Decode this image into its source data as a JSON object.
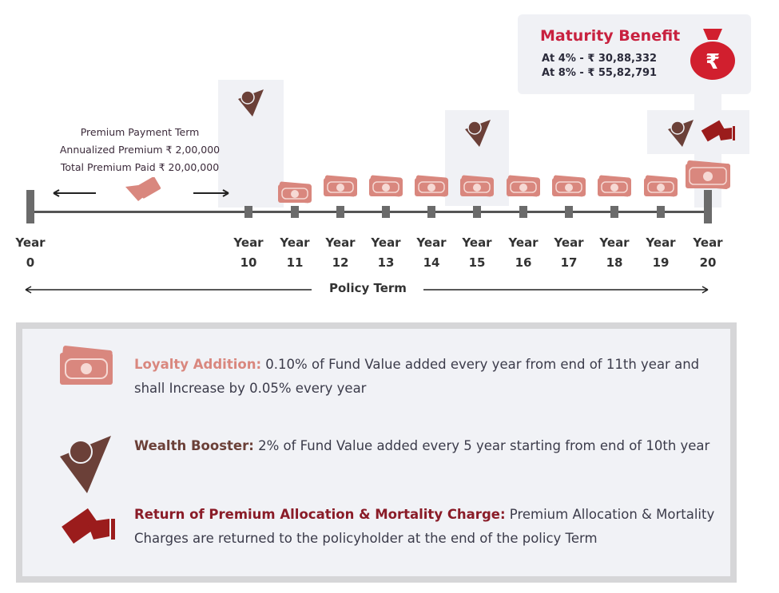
{
  "maturity": {
    "title": "Maturity Benefit",
    "line1": "At 4% - ₹ 30,88,332",
    "line2": "At 8% - ₹ 55,82,791",
    "icon": "money-bag-rupee-icon"
  },
  "premium_payment": {
    "title": "Premium Payment Term",
    "annualized": "Annualized Premium ₹ 2,00,000",
    "total": "Total Premium Paid ₹ 20,00,000"
  },
  "years": [
    {
      "label": "Year",
      "num": "0"
    },
    {
      "label": "Year",
      "num": "10"
    },
    {
      "label": "Year",
      "num": "11"
    },
    {
      "label": "Year",
      "num": "12"
    },
    {
      "label": "Year",
      "num": "13"
    },
    {
      "label": "Year",
      "num": "14"
    },
    {
      "label": "Year",
      "num": "15"
    },
    {
      "label": "Year",
      "num": "16"
    },
    {
      "label": "Year",
      "num": "17"
    },
    {
      "label": "Year",
      "num": "18"
    },
    {
      "label": "Year",
      "num": "19"
    },
    {
      "label": "Year",
      "num": "20"
    }
  ],
  "policy_term": "Policy Term",
  "legend": {
    "loyalty": {
      "title": "Loyalty Addition:",
      "text": " 0.10% of Fund Value added every year from end of 11th year and shall Increase by 0.05% every year"
    },
    "wealth": {
      "title": "Wealth Booster:",
      "text": " 2% of Fund Value added every 5 year starting from end of 10th year"
    },
    "return": {
      "title": "Return of Premium Allocation & Mortality Charge:",
      "text": "  Premium Allocation & Mortality Charges are returned to the policyholder at the end of the policy Term"
    }
  },
  "colors": {
    "loyalty": "#d9877e",
    "wealth": "#6b4038",
    "return": "#9b1c1c",
    "title": "#c8213f"
  }
}
